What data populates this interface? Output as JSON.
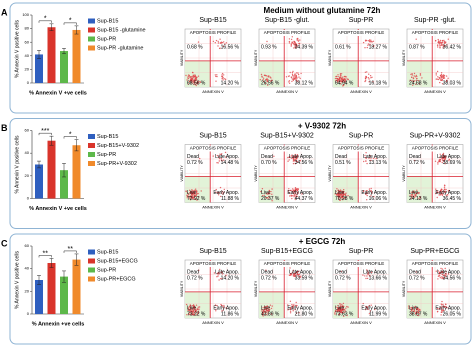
{
  "panels": [
    {
      "letter": "A",
      "title": "Medium without glutamine 72h",
      "chart": {
        "type": "bar",
        "ylabel": "% Annexin V positive cells",
        "xlabel": "% Annexin V +ve cells",
        "categories": [
          "Sup-B15",
          "Sup-B15 -glutamine",
          "Sup-PR",
          "Sup-PR -glutamine"
        ],
        "colors": [
          "#2f5fbf",
          "#d9342b",
          "#5db84a",
          "#f08a2b"
        ],
        "values": [
          42,
          82,
          47,
          78
        ],
        "errors": [
          6,
          5,
          4,
          6
        ],
        "ylim": [
          0,
          100
        ],
        "yticks": [
          0,
          20,
          40,
          60,
          80,
          100
        ],
        "significance": [
          "*",
          "*"
        ]
      },
      "plots": [
        {
          "title": "Sup-B15",
          "subtitle": "APOPTOSIS PROFILE",
          "xlabel": "ANNEXIN V",
          "ylabel": "VIABILITY",
          "values": {
            "dead": "0.68 %",
            "late": "16.56 %",
            "live": "68.56 %",
            "early": "14.20 %"
          }
        },
        {
          "title": "Sup-B15 -glut.",
          "subtitle": "APOPTOSIS PROFILE",
          "xlabel": "ANNEXIN V",
          "ylabel": "VIABILITY",
          "values": {
            "dead": "0.93 %",
            "late": "34.39 %",
            "live": "26.56 %",
            "early": "38.12 %"
          }
        },
        {
          "title": "Sup-PR",
          "subtitle": "APOPTOSIS PROFILE",
          "xlabel": "ANNEXIN V",
          "ylabel": "VIABILITY",
          "values": {
            "dead": "0.61 %",
            "late": "18.27 %",
            "live": "64.94 %",
            "early": "16.18 %"
          }
        },
        {
          "title": "Sup-PR -glut.",
          "subtitle": "APOPTOSIS PROFILE",
          "xlabel": "ANNEXIN V",
          "ylabel": "VIABILITY",
          "values": {
            "dead": "0.87 %",
            "late": "36.42 %",
            "live": "24.68 %",
            "early": "38.03 %"
          }
        }
      ]
    },
    {
      "letter": "B",
      "title": "+ V-9302 72h",
      "chart": {
        "type": "bar",
        "ylabel": "% Annexin V positive cells",
        "xlabel": "% Annexin V +ve cells",
        "categories": [
          "Sup-B15",
          "Sup-B15+V-9302",
          "Sup-PR",
          "Sup-PR+V-9302"
        ],
        "colors": [
          "#2f5fbf",
          "#d9342b",
          "#5db84a",
          "#f08a2b"
        ],
        "values": [
          30,
          51,
          25,
          47
        ],
        "errors": [
          3,
          4,
          6,
          5
        ],
        "ylim": [
          0,
          60
        ],
        "yticks": [
          0,
          20,
          40,
          60
        ],
        "significance": [
          "***",
          "*"
        ]
      },
      "plots": [
        {
          "title": "Sup-B15",
          "subtitle": "APOPTOSIS PROFILE",
          "xlabel": "ANNEXIN V",
          "ylabel": "VIABILITY",
          "labels": {
            "dead": "Dead",
            "late": "Late Apop.",
            "live": "Live",
            "early": "Early Apop."
          },
          "values": {
            "dead": "0.72 %",
            "late": "14.48 %",
            "live": "72.92 %",
            "early": "11.88 %"
          }
        },
        {
          "title": "Sup-B15+V-9302",
          "subtitle": "APOPTOSIS PROFILE",
          "xlabel": "ANNEXIN V",
          "ylabel": "VIABILITY",
          "labels": {
            "dead": "Dead",
            "late": "Late Apop.",
            "live": "Live",
            "early": "Early Apop."
          },
          "values": {
            "dead": "0.70 %",
            "late": "34.56 %",
            "live": "20.37 %",
            "early": "44.37 %"
          }
        },
        {
          "title": "Sup-PR",
          "subtitle": "APOPTOSIS PROFILE",
          "xlabel": "ANNEXIN V",
          "ylabel": "VIABILITY",
          "labels": {
            "dead": "Dead",
            "late": "Late Apop.",
            "live": "Live",
            "early": "Early Apop."
          },
          "values": {
            "dead": "0.51 %",
            "late": "13.13 %",
            "live": "70.28 %",
            "early": "16.06 %"
          }
        },
        {
          "title": "Sup-PR+V-9302",
          "subtitle": "APOPTOSIS PROFILE",
          "xlabel": "ANNEXIN V",
          "ylabel": "VIABILITY",
          "labels": {
            "dead": "Dead",
            "late": "Late Apop.",
            "live": "Live",
            "early": "Early Apop."
          },
          "values": {
            "dead": "0.72 %",
            "late": "38.69 %",
            "live": "24.13 %",
            "early": "36.45 %"
          }
        }
      ]
    },
    {
      "letter": "C",
      "title": "+ EGCG 72h",
      "chart": {
        "type": "bar",
        "ylabel": "% Annexin V positive cells",
        "xlabel": "% Annexin +ve cells",
        "categories": [
          "Sup-B15",
          "Sup-B15+EGCG",
          "Sup-PR",
          "Sup-PR+EGCG"
        ],
        "colors": [
          "#2f5fbf",
          "#d9342b",
          "#5db84a",
          "#f08a2b"
        ],
        "values": [
          30,
          45,
          33,
          48
        ],
        "errors": [
          4,
          4,
          5,
          5
        ],
        "ylim": [
          0,
          60
        ],
        "yticks": [
          0,
          20,
          40,
          60
        ],
        "significance": [
          "**",
          "**"
        ]
      },
      "plots": [
        {
          "title": "Sup-B15",
          "subtitle": "APOPTOSIS PROFILE",
          "xlabel": "ANNEXIN V",
          "ylabel": "VIABILITY",
          "labels": {
            "dead": "Dead",
            "late": "Late Apop.",
            "live": "Live",
            "early": "Early Apop."
          },
          "values": {
            "dead": "0.72 %",
            "late": "14.20 %",
            "live": "73.22 %",
            "early": "11.86 %"
          }
        },
        {
          "title": "Sup-B15+EGCG",
          "subtitle": "APOPTOSIS PROFILE",
          "xlabel": "ANNEXIN V",
          "ylabel": "VIABILITY",
          "labels": {
            "dead": "Dead",
            "late": "Late Apop.",
            "live": "Live",
            "early": "Early Apop."
          },
          "values": {
            "dead": "0.72 %",
            "late": "33.59 %",
            "live": "43.89 %",
            "early": "21.80 %"
          }
        },
        {
          "title": "Sup-PR",
          "subtitle": "APOPTOSIS PROFILE",
          "xlabel": "ANNEXIN V",
          "ylabel": "VIABILITY",
          "labels": {
            "dead": "Dead",
            "late": "Late Apop.",
            "live": "Live",
            "early": "Early Apop."
          },
          "values": {
            "dead": "0.72 %",
            "late": "13.66 %",
            "live": "73.63 %",
            "early": "11.99 %"
          }
        },
        {
          "title": "Sup-PR+EGCG",
          "subtitle": "APOPTOSIS PROFILE",
          "xlabel": "ANNEXIN V",
          "ylabel": "VIABILITY",
          "labels": {
            "dead": "Dead",
            "late": "Late Apop.",
            "live": "Live",
            "early": "Early Apop."
          },
          "values": {
            "dead": "0.72 %",
            "late": "34.56 %",
            "live": "38.67 %",
            "early": "26.05 %"
          }
        }
      ]
    }
  ]
}
